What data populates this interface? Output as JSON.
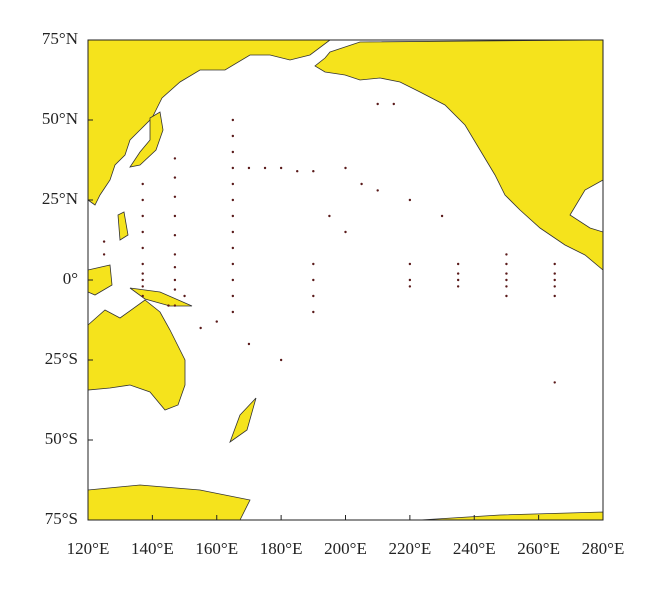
{
  "map": {
    "xlim": [
      120,
      280
    ],
    "ylim": [
      -75,
      75
    ],
    "xticks": [
      {
        "value": 120,
        "label": "120°E"
      },
      {
        "value": 140,
        "label": "140°E"
      },
      {
        "value": 160,
        "label": "160°E"
      },
      {
        "value": 180,
        "label": "180°E"
      },
      {
        "value": 200,
        "label": "200°E"
      },
      {
        "value": 220,
        "label": "220°E"
      },
      {
        "value": 240,
        "label": "240°E"
      },
      {
        "value": 260,
        "label": "260°E"
      },
      {
        "value": 280,
        "label": "280°E"
      }
    ],
    "yticks": [
      {
        "value": 75,
        "label": "75°N"
      },
      {
        "value": 50,
        "label": "50°N"
      },
      {
        "value": 25,
        "label": "25°N"
      },
      {
        "value": 0,
        "label": "0°"
      },
      {
        "value": -25,
        "label": "25°S"
      },
      {
        "value": -50,
        "label": "50°S"
      },
      {
        "value": -75,
        "label": "75°S"
      }
    ],
    "point_color": "#5a1a1a",
    "points": {
      "lon": [
        137,
        137,
        137,
        137,
        137,
        137,
        137,
        137,
        137,
        137,
        147,
        147,
        147,
        147,
        147,
        147,
        147,
        147,
        147,
        147,
        165,
        165,
        165,
        165,
        165,
        165,
        165,
        165,
        165,
        165,
        165,
        165,
        165,
        170,
        175,
        180,
        185,
        190,
        195,
        200,
        205,
        210,
        215,
        220,
        250,
        250,
        250,
        250,
        250,
        250,
        265,
        265,
        265,
        265,
        265,
        235,
        235,
        235,
        235,
        220,
        220,
        220,
        190,
        190,
        190,
        190,
        200,
        210,
        230,
        265,
        160,
        155,
        170,
        180,
        150,
        145,
        125,
        125
      ],
      "lat": [
        30,
        25,
        20,
        15,
        10,
        5,
        2,
        0,
        -2,
        -5,
        38,
        32,
        26,
        20,
        14,
        8,
        4,
        0,
        -3,
        -8,
        50,
        45,
        40,
        35,
        30,
        25,
        20,
        15,
        10,
        5,
        0,
        -5,
        -10,
        35,
        35,
        35,
        34,
        34,
        20,
        35,
        30,
        55,
        55,
        25,
        8,
        5,
        2,
        0,
        -2,
        -5,
        5,
        2,
        0,
        -2,
        -5,
        5,
        2,
        0,
        -2,
        5,
        0,
        -2,
        5,
        0,
        -5,
        -10,
        15,
        28,
        20,
        -32,
        -13,
        -15,
        -20,
        -25,
        -5,
        -8,
        12,
        8
      ]
    }
  }
}
